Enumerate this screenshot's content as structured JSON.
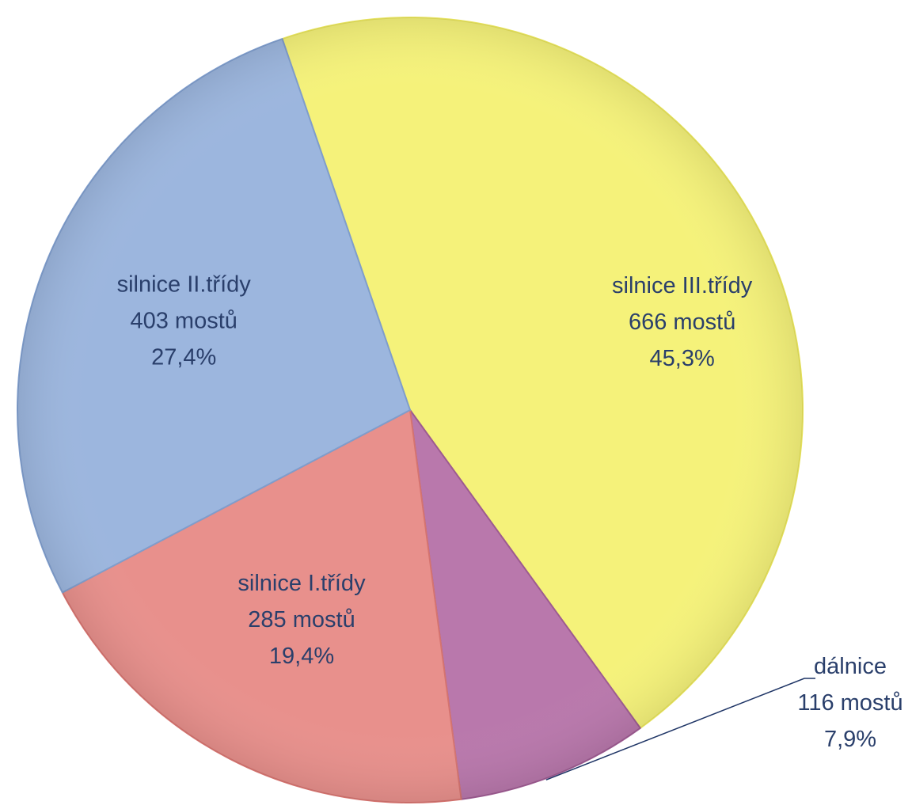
{
  "chart_data": {
    "type": "pie",
    "title": "",
    "start_angle_deg": 251.0,
    "colors": {
      "silnice III.třídy": "#f5f27a",
      "dálnice": "#b978ac",
      "silnice I.třídy": "#e8908c",
      "silnice II.třídy": "#9cb6de",
      "label_text": "#2a3f6b",
      "leader_line": "#1f3566"
    },
    "slices": [
      {
        "name": "silnice III.třídy",
        "value": 666,
        "count_label": "666 mostů",
        "percent_label": "45,3%",
        "percent": 45.3,
        "color": "#f5f27a",
        "edge_color": "#e6e25c"
      },
      {
        "name": "dálnice",
        "value": 116,
        "count_label": "116 mostů",
        "percent_label": "7,9%",
        "percent": 7.9,
        "color": "#b978ac",
        "edge_color": "#9d5b91"
      },
      {
        "name": "silnice I.třídy",
        "value": 285,
        "count_label": "285 mostů",
        "percent_label": "19,4%",
        "percent": 19.4,
        "color": "#e8908c",
        "edge_color": "#d57470"
      },
      {
        "name": "silnice II.třídy",
        "value": 403,
        "count_label": "403 mostů",
        "percent_label": "27,4%",
        "percent": 27.4,
        "color": "#9cb6de",
        "edge_color": "#7f9dcc"
      }
    ]
  }
}
